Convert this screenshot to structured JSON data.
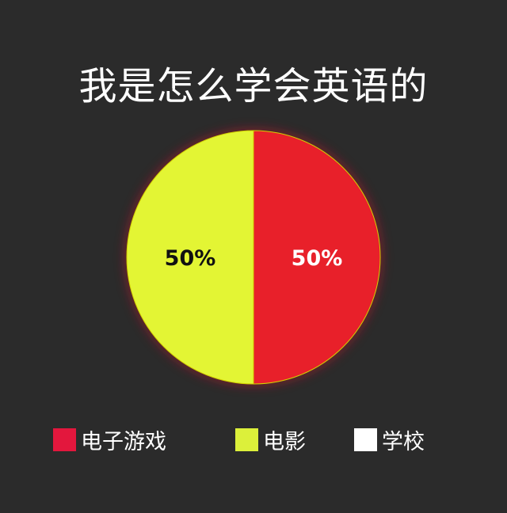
{
  "chart_data": {
    "type": "pie",
    "title": "我是怎么学会英语的",
    "slices": [
      {
        "label": "电子游戏",
        "value": 50,
        "display": "50%",
        "color": "#e8202a",
        "text_color": "#ffffff"
      },
      {
        "label": "电影",
        "value": 50,
        "display": "50%",
        "color": "#e3f534",
        "text_color": "#111111"
      },
      {
        "label": "学校",
        "value": 0,
        "display": "",
        "color": "#ffffff",
        "text_color": "#111111"
      }
    ],
    "legend": {
      "placement": "bottom",
      "items": [
        {
          "label": "电子游戏",
          "color": "#e3173d"
        },
        {
          "label": "电影",
          "color": "#dcf03a"
        },
        {
          "label": "学校",
          "color": "#ffffff"
        }
      ]
    }
  }
}
